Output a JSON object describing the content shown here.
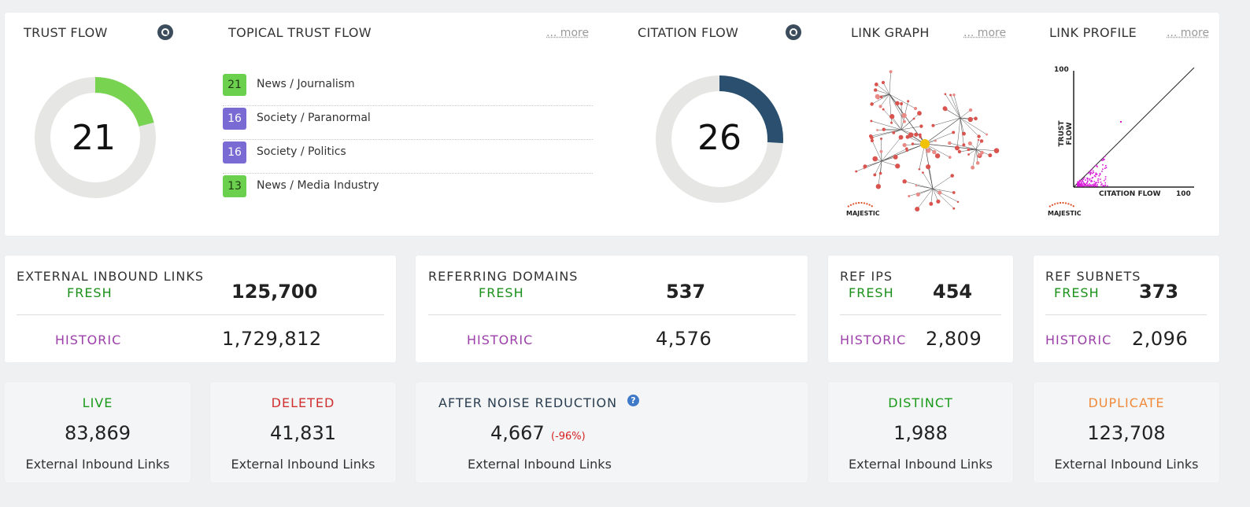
{
  "top": {
    "trust_flow": {
      "title": "TRUST FLOW",
      "value": "21",
      "level": 21,
      "icon": "history-icon"
    },
    "topical": {
      "title": "TOPICAL TRUST FLOW",
      "more": "... more",
      "items": [
        {
          "score": "21",
          "label": "News / Journalism",
          "color": "#6bd04d"
        },
        {
          "score": "16",
          "label": "Society / Paranormal",
          "color": "#7a6ad3"
        },
        {
          "score": "16",
          "label": "Society / Politics",
          "color": "#7a6ad3"
        },
        {
          "score": "13",
          "label": "News / Media Industry",
          "color": "#6bd04d"
        }
      ]
    },
    "citation_flow": {
      "title": "CITATION FLOW",
      "value": "26",
      "level": 26,
      "icon": "history-icon"
    },
    "link_graph": {
      "title": "LINK GRAPH",
      "more": "... more",
      "brand": "MAJESTIC"
    },
    "link_profile": {
      "title": "LINK PROFILE",
      "more": "... more",
      "y_label": "TRUST FLOW",
      "x_label": "CITATION FLOW",
      "y_max": "100",
      "x_max": "100",
      "brand": "MAJESTIC"
    }
  },
  "stats": {
    "fresh_label": "FRESH",
    "historic_label": "HISTORIC",
    "external": {
      "title": "EXTERNAL INBOUND LINKS",
      "fresh": "125,700",
      "historic": "1,729,812"
    },
    "domains": {
      "title": "REFERRING DOMAINS",
      "fresh": "537",
      "historic": "4,576"
    },
    "ips": {
      "title": "REF IPS",
      "fresh": "454",
      "historic": "2,809"
    },
    "subnets": {
      "title": "REF SUBNETS",
      "fresh": "373",
      "historic": "2,096"
    }
  },
  "bottom": {
    "sub": "External Inbound Links",
    "live": {
      "title": "LIVE",
      "value": "83,869",
      "color": "#1a9a1a"
    },
    "deleted": {
      "title": "DELETED",
      "value": "41,831",
      "color": "#d03030"
    },
    "noise": {
      "title": "AFTER NOISE REDUCTION",
      "value": "4,667",
      "pct": "(-96%)",
      "help": "?"
    },
    "distinct": {
      "title": "DISTINCT",
      "value": "1,988",
      "color": "#1a9a1a"
    },
    "duplicate": {
      "title": "DUPLICATE",
      "value": "123,708",
      "color": "#f08a3a"
    }
  },
  "colors": {
    "trust": "#78d450",
    "citation": "#2b4f6e",
    "track": "#e6e6e4"
  }
}
